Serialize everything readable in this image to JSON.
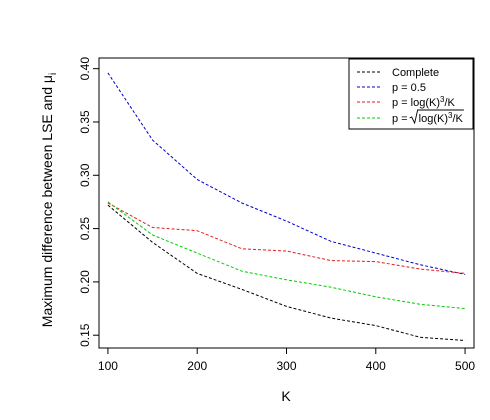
{
  "chart_data": {
    "type": "line",
    "title": "",
    "xlabel": "K",
    "ylabel": "Maximum difference between LSE and μ",
    "ylabel_subscript": "i",
    "xlim": [
      90,
      510
    ],
    "ylim": [
      0.138,
      0.41
    ],
    "xticks": [
      100,
      200,
      300,
      400,
      500
    ],
    "yticks": [
      0.15,
      0.2,
      0.25,
      0.3,
      0.35,
      0.4
    ],
    "grid": false,
    "legend_position": "top-right",
    "x": [
      100,
      150,
      200,
      250,
      300,
      350,
      400,
      450,
      500
    ],
    "series": [
      {
        "name": "Complete",
        "color": "#000000",
        "values": [
          0.272,
          0.237,
          0.208,
          0.193,
          0.177,
          0.166,
          0.159,
          0.148,
          0.145
        ]
      },
      {
        "name": "p = 0.5",
        "color": "#0000cc",
        "values": [
          0.396,
          0.333,
          0.296,
          0.274,
          0.257,
          0.238,
          0.227,
          0.216,
          0.207
        ]
      },
      {
        "name": "p = log(K)³/K",
        "legend_parts": {
          "prefix": "p = log(K)",
          "sup": "3",
          "suffix": "/K"
        },
        "color": "#e41a1c",
        "values": [
          0.274,
          0.251,
          0.248,
          0.231,
          0.229,
          0.22,
          0.219,
          0.212,
          0.208
        ]
      },
      {
        "name": "p = √(log(K)³/K)",
        "legend_parts": {
          "prefix": "p = ",
          "radicand": "log(K)",
          "sup": "3",
          "suffix": "/K"
        },
        "color": "#00cc00",
        "values": [
          0.275,
          0.244,
          0.227,
          0.21,
          0.202,
          0.195,
          0.186,
          0.179,
          0.175
        ]
      }
    ]
  }
}
